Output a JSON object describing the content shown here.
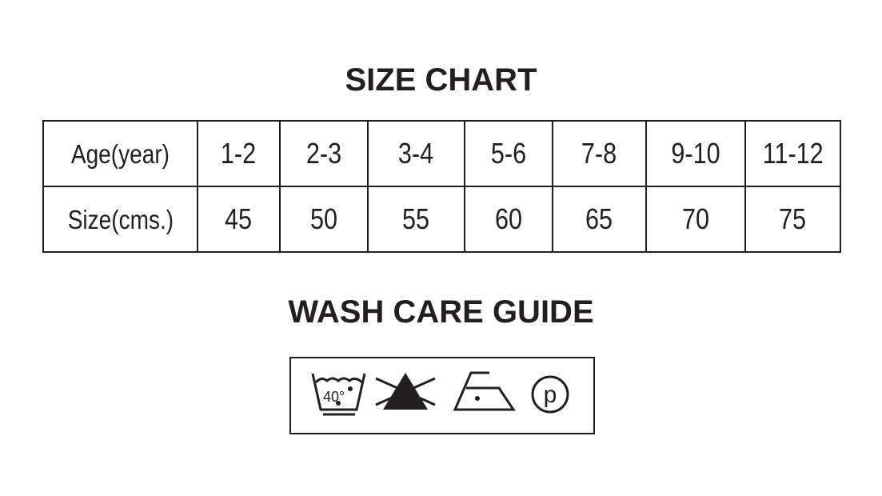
{
  "size_chart": {
    "title": "SIZE CHART",
    "rows": [
      {
        "label": "Age(year)",
        "values": [
          "1-2",
          "2-3",
          "3-4",
          "5-6",
          "7-8",
          "9-10",
          "11-12"
        ]
      },
      {
        "label": "Size(cms.)",
        "values": [
          "45",
          "50",
          "55",
          "60",
          "65",
          "70",
          "75"
        ]
      }
    ]
  },
  "wash_care": {
    "title": "WASH CARE GUIDE",
    "icons": [
      {
        "name": "wash-40-gentle-icon",
        "text": "40°"
      },
      {
        "name": "do-not-bleach-icon"
      },
      {
        "name": "iron-low-heat-icon"
      },
      {
        "name": "professional-dry-clean-p-icon",
        "text": "p"
      }
    ]
  }
}
